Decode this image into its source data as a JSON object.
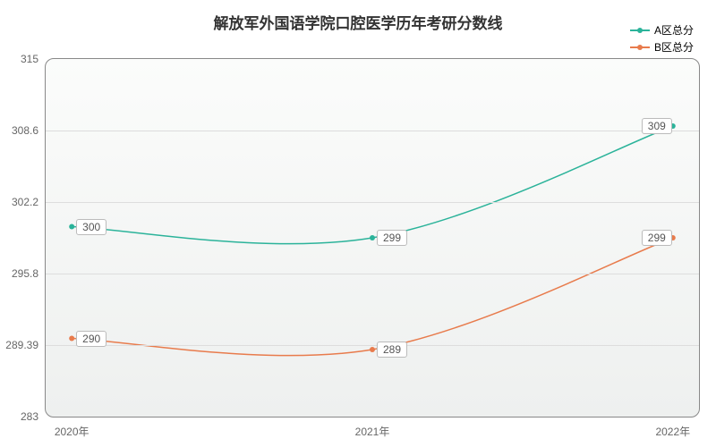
{
  "chart": {
    "type": "line",
    "title": "解放军外国语学院口腔医学历年考研分数线",
    "title_fontsize": 17,
    "title_color": "#333333",
    "background_color": "#ffffff",
    "plot_background": "linear-gradient(to top, #eef0ef 0%, #fbfcfb 100%)",
    "grid_color": "#dddddd",
    "border_color": "#888888",
    "categories": [
      "2020年",
      "2021年",
      "2022年"
    ],
    "x_positions_pct": [
      4,
      50,
      96
    ],
    "ylim": [
      283,
      315
    ],
    "y_ticks": [
      283,
      289.39,
      295.8,
      302.2,
      308.6,
      315
    ],
    "y_tick_labels": [
      "283",
      "289.39",
      "295.8",
      "302.2",
      "308.6",
      "315"
    ],
    "label_fontsize": 12,
    "label_color": "#666666",
    "series": [
      {
        "name": "A区总分",
        "color": "#2bb39a",
        "values": [
          300,
          299,
          309
        ],
        "labels": [
          "300",
          "299",
          "309"
        ],
        "line_width": 1.5
      },
      {
        "name": "B区总分",
        "color": "#e87b4c",
        "values": [
          290,
          289,
          299
        ],
        "labels": [
          "290",
          "289",
          "299"
        ],
        "line_width": 1.5
      }
    ],
    "legend_fontsize": 12,
    "data_label_bg": "#ffffff",
    "data_label_border": "#bbbbbb"
  }
}
